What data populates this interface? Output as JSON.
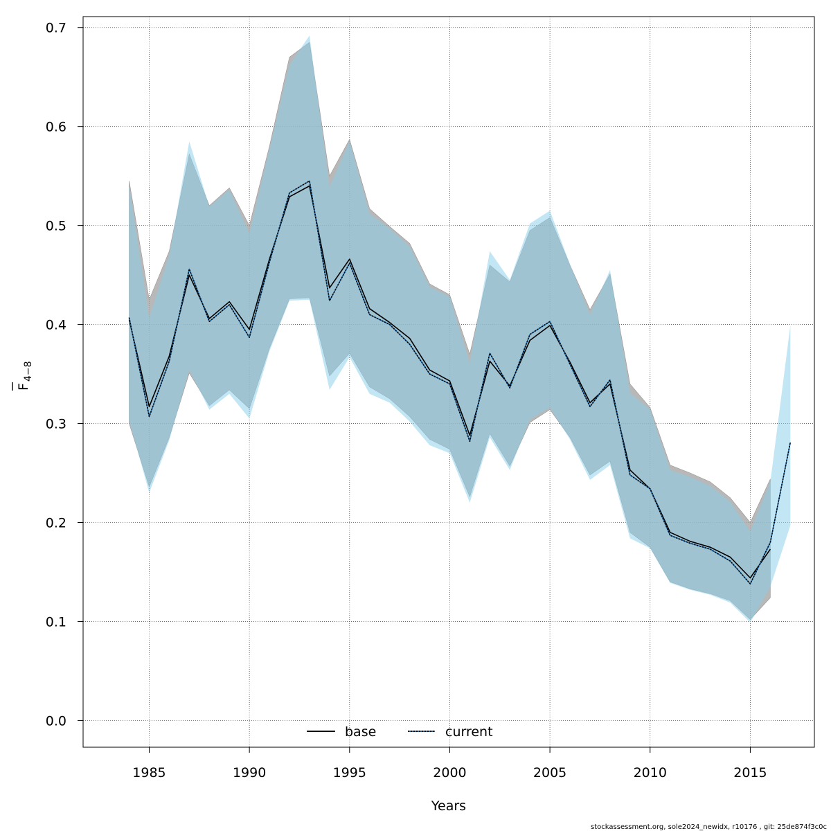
{
  "chart_data": {
    "type": "line",
    "xlabel": "Years",
    "ylabel_main": "F",
    "ylabel_sub": "4−8",
    "xlim": [
      1981.7,
      2018.2
    ],
    "ylim": [
      -0.027,
      0.711
    ],
    "xticks": [
      1985,
      1990,
      1995,
      2000,
      2005,
      2010,
      2015
    ],
    "yticks": [
      0.0,
      0.1,
      0.2,
      0.3,
      0.4,
      0.5,
      0.6,
      0.7
    ],
    "ytick_labels": [
      "0.0",
      "0.1",
      "0.2",
      "0.3",
      "0.4",
      "0.5",
      "0.6",
      "0.7"
    ],
    "grid": true,
    "legend_position": "bottom",
    "footer": "stockassessment.org, sole2024_newidx, r10176 , git: 25de874f3c0c",
    "colors": {
      "base_band": "#a0a0a0",
      "current_band": "#87ceeb",
      "base_line": "#000000",
      "current_line_dark": "#000000",
      "current_line_light": "#1e6fb0"
    },
    "series": [
      {
        "name": "base",
        "line_style": "solid",
        "x": [
          1984,
          1985,
          1986,
          1987,
          1988,
          1989,
          1990,
          1991,
          1992,
          1993,
          1994,
          1995,
          1996,
          1997,
          1998,
          1999,
          2000,
          2001,
          2002,
          2003,
          2004,
          2005,
          2006,
          2007,
          2008,
          2009,
          2010,
          2011,
          2012,
          2013,
          2014,
          2015,
          2016
        ],
        "y": [
          0.405,
          0.317,
          0.368,
          0.45,
          0.406,
          0.423,
          0.395,
          0.466,
          0.529,
          0.54,
          0.437,
          0.466,
          0.416,
          0.402,
          0.386,
          0.354,
          0.343,
          0.288,
          0.363,
          0.338,
          0.384,
          0.399,
          0.362,
          0.321,
          0.34,
          0.253,
          0.234,
          0.19,
          0.181,
          0.175,
          0.165,
          0.144,
          0.173
        ],
        "lower": [
          0.3,
          0.236,
          0.286,
          0.351,
          0.318,
          0.334,
          0.315,
          0.376,
          0.426,
          0.427,
          0.348,
          0.371,
          0.337,
          0.325,
          0.307,
          0.284,
          0.274,
          0.226,
          0.29,
          0.257,
          0.301,
          0.314,
          0.286,
          0.248,
          0.262,
          0.19,
          0.175,
          0.14,
          0.133,
          0.128,
          0.121,
          0.102,
          0.124
        ],
        "upper": [
          0.545,
          0.425,
          0.474,
          0.572,
          0.52,
          0.538,
          0.5,
          0.58,
          0.67,
          0.685,
          0.55,
          0.587,
          0.517,
          0.499,
          0.482,
          0.441,
          0.43,
          0.37,
          0.46,
          0.443,
          0.495,
          0.508,
          0.46,
          0.415,
          0.451,
          0.34,
          0.316,
          0.258,
          0.25,
          0.241,
          0.225,
          0.2,
          0.244
        ]
      },
      {
        "name": "current",
        "line_style": "dotted",
        "x": [
          1984,
          1985,
          1986,
          1987,
          1988,
          1989,
          1990,
          1991,
          1992,
          1993,
          1994,
          1995,
          1996,
          1997,
          1998,
          1999,
          2000,
          2001,
          2002,
          2003,
          2004,
          2005,
          2006,
          2007,
          2008,
          2009,
          2010,
          2011,
          2012,
          2013,
          2014,
          2015,
          2016,
          2017
        ],
        "y": [
          0.407,
          0.307,
          0.363,
          0.456,
          0.403,
          0.42,
          0.387,
          0.463,
          0.533,
          0.545,
          0.424,
          0.462,
          0.41,
          0.4,
          0.38,
          0.35,
          0.34,
          0.282,
          0.371,
          0.336,
          0.39,
          0.403,
          0.36,
          0.317,
          0.344,
          0.248,
          0.234,
          0.187,
          0.179,
          0.173,
          0.161,
          0.138,
          0.18,
          0.281
        ],
        "lower": [
          0.303,
          0.23,
          0.283,
          0.354,
          0.314,
          0.33,
          0.305,
          0.373,
          0.424,
          0.425,
          0.334,
          0.367,
          0.33,
          0.321,
          0.302,
          0.278,
          0.27,
          0.22,
          0.286,
          0.253,
          0.304,
          0.316,
          0.284,
          0.243,
          0.258,
          0.184,
          0.174,
          0.139,
          0.132,
          0.127,
          0.119,
          0.099,
          0.135,
          0.197
        ],
        "upper": [
          0.54,
          0.407,
          0.47,
          0.585,
          0.519,
          0.536,
          0.492,
          0.577,
          0.662,
          0.692,
          0.539,
          0.585,
          0.512,
          0.497,
          0.479,
          0.438,
          0.428,
          0.361,
          0.474,
          0.445,
          0.502,
          0.515,
          0.461,
          0.41,
          0.455,
          0.331,
          0.314,
          0.253,
          0.246,
          0.237,
          0.221,
          0.191,
          0.241,
          0.399
        ]
      }
    ]
  }
}
